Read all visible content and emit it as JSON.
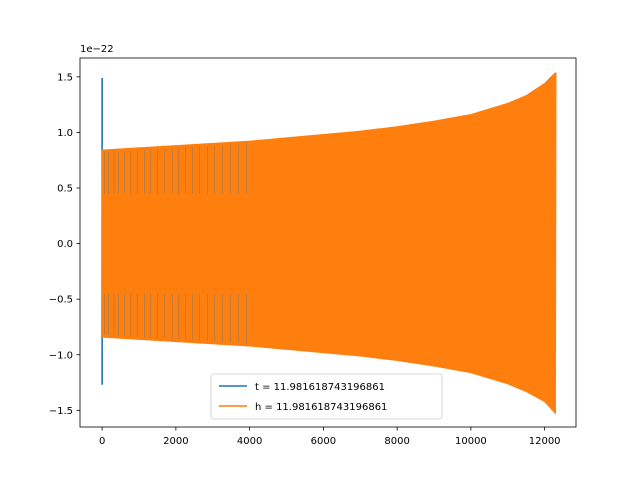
{
  "chart_data": {
    "type": "line",
    "title": "",
    "xlabel": "",
    "ylabel": "",
    "y_offset_label": "1e−22",
    "xlim": [
      -600,
      12850
    ],
    "ylim": [
      -1.65,
      1.67
    ],
    "x_ticks": [
      0,
      2000,
      4000,
      6000,
      8000,
      10000,
      12000
    ],
    "x_tick_labels": [
      "0",
      "2000",
      "4000",
      "6000",
      "8000",
      "10000",
      "12000"
    ],
    "y_ticks": [
      -1.5,
      -1.0,
      -0.5,
      0.0,
      0.5,
      1.0,
      1.5
    ],
    "y_tick_labels": [
      "−1.5",
      "−1.0",
      "−0.5",
      "0.0",
      "0.5",
      "1.0",
      "1.5"
    ],
    "grid": false,
    "legend_position": "lower-center",
    "series": [
      {
        "name": "t = 11.981618743196861",
        "color": "#1f77b4",
        "envelope_x": [
          0,
          15
        ],
        "envelope_upper": [
          1.49,
          0.84
        ],
        "envelope_lower": [
          -1.27,
          -0.84
        ]
      },
      {
        "name": "h = 11.981618743196861",
        "color": "#ff7f0e",
        "envelope_x": [
          0,
          1000,
          2000,
          3000,
          4000,
          5000,
          6000,
          7000,
          8000,
          9000,
          10000,
          11000,
          11500,
          12000,
          12300
        ],
        "envelope_upper": [
          0.84,
          0.86,
          0.88,
          0.9,
          0.92,
          0.95,
          0.98,
          1.01,
          1.05,
          1.1,
          1.16,
          1.26,
          1.33,
          1.44,
          1.54
        ],
        "envelope_lower": [
          -0.84,
          -0.86,
          -0.88,
          -0.9,
          -0.92,
          -0.95,
          -0.98,
          -1.01,
          -1.05,
          -1.1,
          -1.16,
          -1.26,
          -1.33,
          -1.42,
          -1.53
        ]
      }
    ]
  }
}
